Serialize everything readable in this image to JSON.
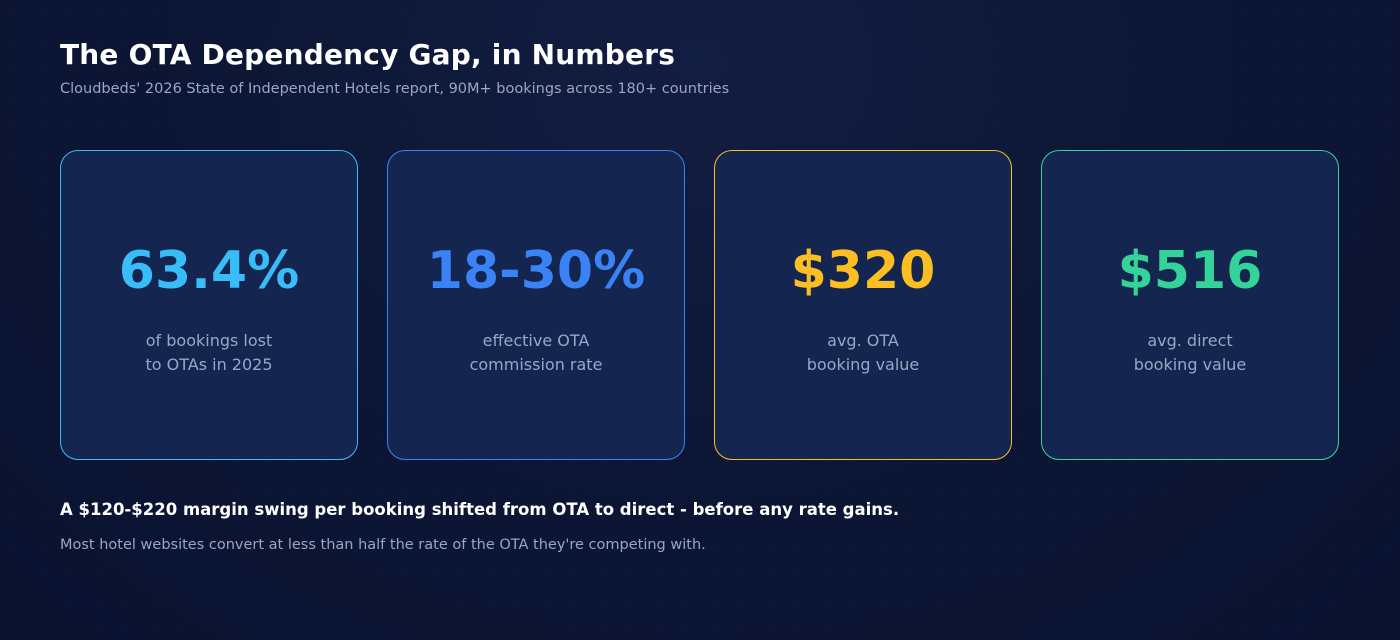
{
  "title": "The OTA Dependency Gap, in Numbers",
  "subtitle": "Cloudbeds' 2026 State of Independent Hotels report, 90M+ bookings across 180+ countries",
  "stats": [
    {
      "value": "63.4%",
      "line1": "of bookings lost",
      "line2": "to OTAs in 2025",
      "color": "#38bdf8"
    },
    {
      "value": "18-30%",
      "line1": "effective OTA",
      "line2": "commission rate",
      "color": "#3b82f6"
    },
    {
      "value": "$320",
      "line1": "avg. OTA",
      "line2": "booking value",
      "color": "#fbbf24"
    },
    {
      "value": "$516",
      "line1": "avg. direct",
      "line2": "booking value",
      "color": "#34d399"
    }
  ],
  "headline": "A $120-$220 margin swing per booking shifted from OTA to direct - before any rate gains.",
  "note": "Most hotel websites convert at less than half the rate of the OTA they're competing with."
}
